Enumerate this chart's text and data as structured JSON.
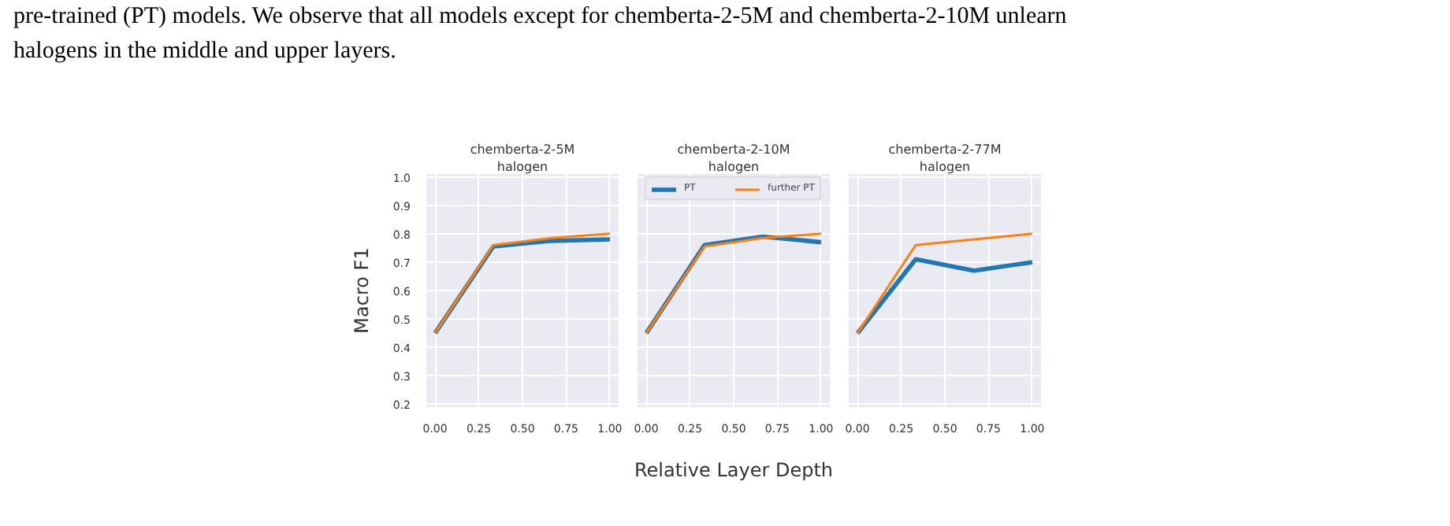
{
  "chart_data": [
    {
      "type": "line",
      "title": "chemberta-2-5M",
      "subtitle": "halogen",
      "ylabel": "Macro F1",
      "x": [
        0,
        0.333,
        0.667,
        1
      ],
      "xlim": [
        -0.05,
        1.05
      ],
      "ylim": [
        0.19,
        1.01
      ],
      "xticks": [
        {
          "value": 0,
          "label": "0.00"
        },
        {
          "value": 0.25,
          "label": "0.25"
        },
        {
          "value": 0.5,
          "label": "0.50"
        },
        {
          "value": 0.75,
          "label": "0.75"
        },
        {
          "value": 1,
          "label": "1.00"
        }
      ],
      "yticks": [
        0.2,
        0.3,
        0.4,
        0.5,
        0.6,
        0.7,
        0.8,
        0.9,
        {
          "value": 1.0,
          "label": "1.0"
        }
      ],
      "grid": true,
      "annotations": [
        "pre-trained (PT) models. We observe that all models except for chemberta-2-5M and chemberta-2-10M unlearn",
        "halogens in the middle and upper layers."
      ],
      "series": [
        {
          "color": "#1f77b4",
          "values": [
            0.45,
            0.755,
            0.775,
            0.78
          ]
        },
        {
          "color": "#ff7f0e",
          "values": [
            0.45,
            0.76,
            0.785,
            0.8
          ]
        }
      ]
    },
    {
      "type": "line",
      "title": "chemberta-2-10M",
      "subtitle": "halogen",
      "xlabel": "Relative Layer Depth",
      "x": [
        0,
        0.333,
        0.667,
        1
      ],
      "xlim": [
        -0.05,
        1.05
      ],
      "ylim": [
        0.19,
        1.01
      ],
      "xticks": [
        {
          "value": 0,
          "label": "0.00"
        },
        {
          "value": 0.25,
          "label": "0.25"
        },
        {
          "value": 0.5,
          "label": "0.50"
        },
        {
          "value": 0.75,
          "label": "0.75"
        },
        {
          "value": 1,
          "label": "1.00"
        }
      ],
      "yticks": [
        0.2,
        0.3,
        0.4,
        0.5,
        0.6,
        0.7,
        0.8,
        0.9,
        1.0
      ],
      "grid": true,
      "tick_labels": "x",
      "legend": "top",
      "series": [
        {
          "name": "PT",
          "color": "#1f77b4",
          "values": [
            0.45,
            0.76,
            0.79,
            0.77
          ]
        },
        {
          "name": "further PT",
          "color": "#ff7f0e",
          "values": [
            0.45,
            0.755,
            0.785,
            0.8
          ]
        }
      ]
    },
    {
      "type": "line",
      "title": "chemberta-2-77M",
      "subtitle": "halogen",
      "x": [
        0,
        0.333,
        0.667,
        1
      ],
      "xlim": [
        -0.05,
        1.05
      ],
      "ylim": [
        0.19,
        1.01
      ],
      "xticks": [
        {
          "value": 0,
          "label": "0.00"
        },
        {
          "value": 0.25,
          "label": "0.25"
        },
        {
          "value": 0.5,
          "label": "0.50"
        },
        {
          "value": 0.75,
          "label": "0.75"
        },
        {
          "value": 1,
          "label": "1.00"
        }
      ],
      "yticks": [
        0.2,
        0.3,
        0.4,
        0.5,
        0.6,
        0.7,
        0.8,
        0.9,
        1.0
      ],
      "grid": true,
      "tick_labels": "x",
      "series": [
        {
          "color": "#1f77b4",
          "values": [
            0.45,
            0.71,
            0.67,
            0.7
          ]
        },
        {
          "color": "#ff7f0e",
          "values": [
            0.45,
            0.76,
            0.78,
            0.8
          ]
        }
      ]
    }
  ]
}
